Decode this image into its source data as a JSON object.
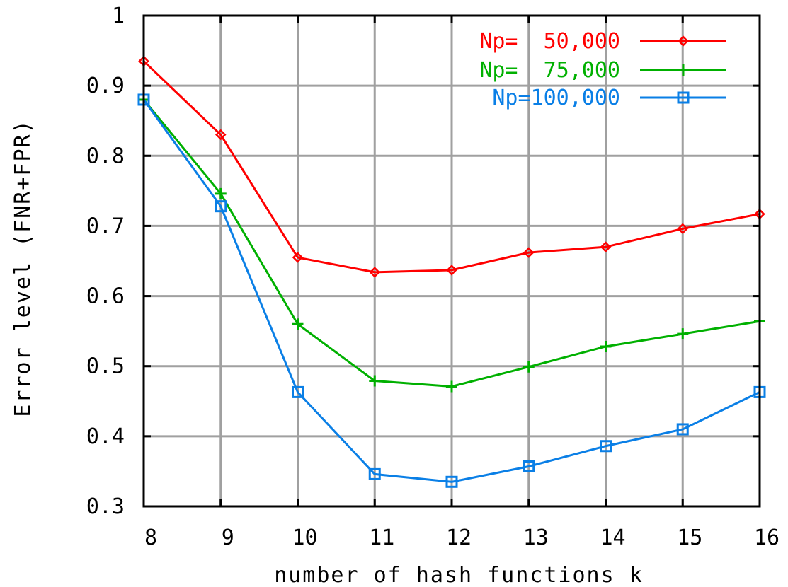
{
  "chart_data": {
    "type": "line",
    "xlabel": "number of hash functions k",
    "ylabel": "Error level (FNR+FPR)",
    "xlim": [
      8,
      16
    ],
    "ylim": [
      0.3,
      1
    ],
    "x_ticks": [
      "8",
      "9",
      "10",
      "11",
      "12",
      "13",
      "14",
      "15",
      "16"
    ],
    "y_ticks": [
      "0.3",
      "0.4",
      "0.5",
      "0.6",
      "0.7",
      "0.8",
      "0.9",
      "1"
    ],
    "grid": true,
    "legend_position": "top-right",
    "x": [
      8,
      9,
      10,
      11,
      12,
      13,
      14,
      15,
      16
    ],
    "series": [
      {
        "name": "Np=  50,000",
        "color": "#ff0000",
        "marker": "diamond",
        "values": [
          0.935,
          0.83,
          0.655,
          0.634,
          0.637,
          0.662,
          0.67,
          0.696,
          0.717
        ]
      },
      {
        "name": "Np=  75,000",
        "color": "#00b000",
        "marker": "plus",
        "values": [
          0.88,
          0.746,
          0.56,
          0.479,
          0.471,
          0.499,
          0.528,
          0.546,
          0.564
        ]
      },
      {
        "name": "Np=100,000",
        "color": "#0a7fe6",
        "marker": "square",
        "values": [
          0.88,
          0.728,
          0.463,
          0.346,
          0.335,
          0.357,
          0.386,
          0.41,
          0.463
        ]
      }
    ]
  }
}
